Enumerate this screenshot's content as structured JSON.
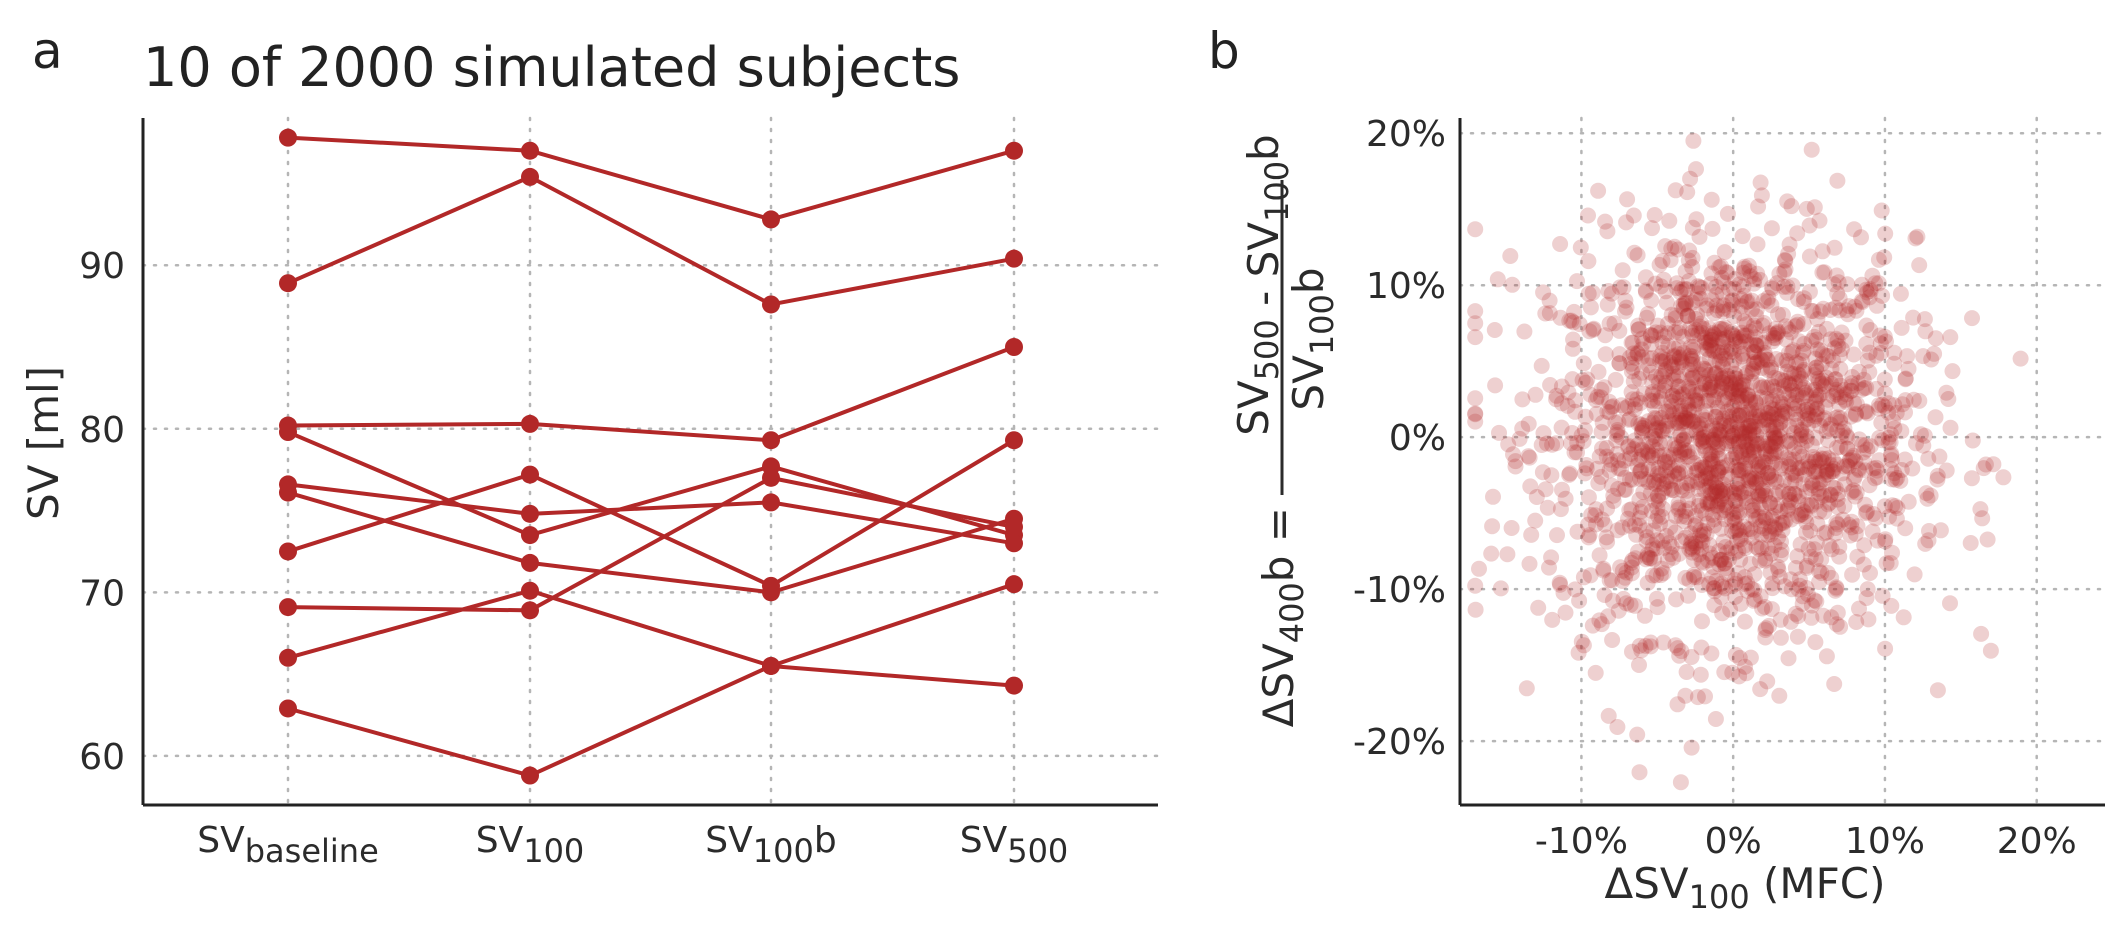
{
  "chart_data": [
    {
      "type": "line",
      "panel": "a",
      "title": "10 of 2000 simulated subjects",
      "ylabel": "SV [ml]",
      "xlabel": "",
      "categories": [
        {
          "main": "SV",
          "sub": "baseline",
          "after": ""
        },
        {
          "main": "SV",
          "sub": "100",
          "after": ""
        },
        {
          "main": "SV",
          "sub": "100",
          "after": "b"
        },
        {
          "main": "SV",
          "sub": "500",
          "after": ""
        }
      ],
      "yticks": [
        60,
        70,
        80,
        90
      ],
      "ylim": [
        57,
        99
      ],
      "grid": true,
      "color": "#b22828",
      "series": [
        {
          "values": [
            97.8,
            97.0,
            92.8,
            97.0
          ]
        },
        {
          "values": [
            88.9,
            95.4,
            87.6,
            90.4
          ]
        },
        {
          "values": [
            80.2,
            80.3,
            79.3,
            85.0
          ]
        },
        {
          "values": [
            79.8,
            73.5,
            77.7,
            73.5
          ]
        },
        {
          "values": [
            76.6,
            74.8,
            75.5,
            73.0
          ]
        },
        {
          "values": [
            76.1,
            71.8,
            70.0,
            74.5
          ]
        },
        {
          "values": [
            72.5,
            77.2,
            70.4,
            79.3
          ]
        },
        {
          "values": [
            69.1,
            68.9,
            77.0,
            74.0
          ]
        },
        {
          "values": [
            66.0,
            70.1,
            65.5,
            64.3
          ]
        },
        {
          "values": [
            62.9,
            58.8,
            65.5,
            70.5
          ]
        }
      ]
    },
    {
      "type": "scatter",
      "panel": "b",
      "title": "",
      "xlabel": {
        "main": "ΔSV",
        "sub": "100",
        "after": " (MFC)"
      },
      "ylabel": {
        "lhs": {
          "main": "ΔSV",
          "sub": "400",
          "after": "b ="
        },
        "numerator": [
          {
            "main": "SV",
            "sub": "500"
          },
          {
            "main": " - SV",
            "sub": "100",
            "after": "b"
          }
        ],
        "denominator": {
          "main": "SV",
          "sub": "100",
          "after": "b"
        }
      },
      "xticks": [
        -10,
        0,
        10,
        20
      ],
      "yticks": [
        -20,
        -10,
        0,
        10,
        20
      ],
      "tick_suffix": "%",
      "xlim": [
        -18,
        24.5
      ],
      "ylim": [
        -24.2,
        21
      ],
      "grid": true,
      "n_points": 2000,
      "x_distribution": {
        "mean": 0,
        "sd": 6
      },
      "y_distribution": {
        "mean": 0,
        "sd": 6.5
      },
      "point_color": "#b22828",
      "point_opacity": 0.22
    }
  ],
  "panel_labels": {
    "a": "a",
    "b": "b"
  }
}
